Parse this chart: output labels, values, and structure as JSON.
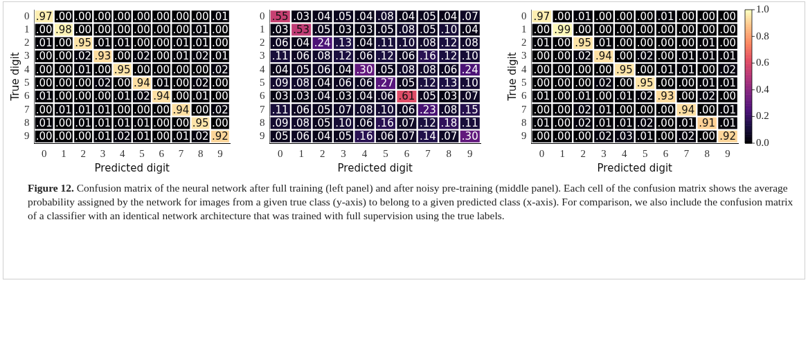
{
  "chart_data": [
    {
      "type": "heatmap",
      "xlabel": "Predicted digit",
      "ylabel": "True digit",
      "categories": [
        "0",
        "1",
        "2",
        "3",
        "4",
        "5",
        "6",
        "7",
        "8",
        "9"
      ],
      "y_categories": [
        "0",
        "1",
        "2",
        "3",
        "4",
        "5",
        "6",
        "7",
        "8",
        "9"
      ],
      "cells": [
        [
          0.97,
          0.0,
          0.0,
          0.0,
          0.0,
          0.0,
          0.0,
          0.0,
          0.0,
          0.01
        ],
        [
          0.0,
          0.98,
          0.0,
          0.0,
          0.0,
          0.0,
          0.0,
          0.0,
          0.01,
          0.0
        ],
        [
          0.01,
          0.0,
          0.95,
          0.01,
          0.01,
          0.0,
          0.0,
          0.01,
          0.01,
          0.0
        ],
        [
          0.0,
          0.0,
          0.02,
          0.93,
          0.0,
          0.02,
          0.0,
          0.01,
          0.02,
          0.01
        ],
        [
          0.0,
          0.0,
          0.01,
          0.0,
          0.95,
          0.0,
          0.0,
          0.0,
          0.0,
          0.02
        ],
        [
          0.0,
          0.0,
          0.0,
          0.02,
          0.0,
          0.94,
          0.01,
          0.0,
          0.02,
          0.0
        ],
        [
          0.01,
          0.0,
          0.0,
          0.0,
          0.01,
          0.02,
          0.94,
          0.0,
          0.01,
          0.0
        ],
        [
          0.0,
          0.01,
          0.01,
          0.01,
          0.0,
          0.0,
          0.0,
          0.94,
          0.0,
          0.02
        ],
        [
          0.01,
          0.0,
          0.01,
          0.01,
          0.01,
          0.01,
          0.0,
          0.0,
          0.95,
          0.0
        ],
        [
          0.0,
          0.0,
          0.0,
          0.01,
          0.02,
          0.01,
          0.0,
          0.01,
          0.02,
          0.92
        ]
      ],
      "cell_labels": [
        [
          ".97",
          ".00",
          ".00",
          ".00",
          ".00",
          ".00",
          ".00",
          ".00",
          ".00",
          ".01"
        ],
        [
          ".00",
          ".98",
          ".00",
          ".00",
          ".00",
          ".00",
          ".00",
          ".00",
          ".01",
          ".00"
        ],
        [
          ".01",
          ".00",
          ".95",
          ".01",
          ".01",
          ".00",
          ".00",
          ".01",
          ".01",
          ".00"
        ],
        [
          ".00",
          ".00",
          ".02",
          ".93",
          ".00",
          ".02",
          ".00",
          ".01",
          ".02",
          ".01"
        ],
        [
          ".00",
          ".00",
          ".01",
          ".00",
          ".95",
          ".00",
          ".00",
          ".00",
          ".00",
          ".02"
        ],
        [
          ".00",
          ".00",
          ".00",
          ".02",
          ".00",
          ".94",
          ".01",
          ".00",
          ".02",
          ".00"
        ],
        [
          ".01",
          ".00",
          ".00",
          ".00",
          ".01",
          ".02",
          ".94",
          ".00",
          ".01",
          ".00"
        ],
        [
          ".00",
          ".01",
          ".01",
          ".01",
          ".00",
          ".00",
          ".00",
          ".94",
          ".00",
          ".02"
        ],
        [
          ".01",
          ".00",
          ".01",
          ".01",
          ".01",
          ".01",
          ".00",
          ".00",
          ".95",
          ".00"
        ],
        [
          ".00",
          ".00",
          ".00",
          ".01",
          ".02",
          ".01",
          ".00",
          ".01",
          ".02",
          ".92"
        ]
      ],
      "annotations": [
        "Figure 12.",
        "Confusion matrix of the neural network after full training (left panel) and after noisy pre-training (middle panel). Each cell of the confusion matrix shows the average probability assigned by the network for images from a given true class (y-axis) to belong to a given predicted class (x-axis). For comparison, we also include the confusion matrix of a classifier with an identical network architecture that was trained with full supervision using the true labels."
      ]
    },
    {
      "type": "heatmap",
      "xlabel": "Predicted digit",
      "categories": [
        "0",
        "1",
        "2",
        "3",
        "4",
        "5",
        "6",
        "7",
        "8",
        "9"
      ],
      "y_categories": [
        "0",
        "1",
        "2",
        "3",
        "4",
        "5",
        "6",
        "7",
        "8",
        "9"
      ],
      "cells": [
        [
          0.55,
          0.03,
          0.04,
          0.05,
          0.04,
          0.08,
          0.04,
          0.05,
          0.04,
          0.07
        ],
        [
          0.03,
          0.53,
          0.05,
          0.03,
          0.03,
          0.05,
          0.08,
          0.05,
          0.1,
          0.04
        ],
        [
          0.06,
          0.04,
          0.24,
          0.13,
          0.04,
          0.11,
          0.1,
          0.08,
          0.12,
          0.08
        ],
        [
          0.11,
          0.06,
          0.08,
          0.12,
          0.06,
          0.12,
          0.06,
          0.16,
          0.12,
          0.1
        ],
        [
          0.04,
          0.05,
          0.06,
          0.04,
          0.3,
          0.05,
          0.08,
          0.08,
          0.06,
          0.24
        ],
        [
          0.09,
          0.08,
          0.04,
          0.06,
          0.06,
          0.27,
          0.05,
          0.12,
          0.13,
          0.1
        ],
        [
          0.03,
          0.03,
          0.04,
          0.03,
          0.04,
          0.06,
          0.61,
          0.05,
          0.03,
          0.07
        ],
        [
          0.11,
          0.06,
          0.05,
          0.07,
          0.08,
          0.1,
          0.06,
          0.23,
          0.08,
          0.15
        ],
        [
          0.09,
          0.08,
          0.05,
          0.1,
          0.06,
          0.16,
          0.07,
          0.12,
          0.18,
          0.11
        ],
        [
          0.05,
          0.06,
          0.04,
          0.05,
          0.16,
          0.06,
          0.07,
          0.14,
          0.07,
          0.3
        ]
      ],
      "cell_labels": [
        [
          ".55",
          ".03",
          ".04",
          ".05",
          ".04",
          ".08",
          ".04",
          ".05",
          ".04",
          ".07"
        ],
        [
          ".03",
          ".53",
          ".05",
          ".03",
          ".03",
          ".05",
          ".08",
          ".05",
          ".10",
          ".04"
        ],
        [
          ".06",
          ".04",
          ".24",
          ".13",
          ".04",
          ".11",
          ".10",
          ".08",
          ".12",
          ".08"
        ],
        [
          ".11",
          ".06",
          ".08",
          ".12",
          ".06",
          ".12",
          ".06",
          ".16",
          ".12",
          ".10"
        ],
        [
          ".04",
          ".05",
          ".06",
          ".04",
          ".30",
          ".05",
          ".08",
          ".08",
          ".06",
          ".24"
        ],
        [
          ".09",
          ".08",
          ".04",
          ".06",
          ".06",
          ".27",
          ".05",
          ".12",
          ".13",
          ".10"
        ],
        [
          ".03",
          ".03",
          ".04",
          ".03",
          ".04",
          ".06",
          ".61",
          ".05",
          ".03",
          ".07"
        ],
        [
          ".11",
          ".06",
          ".05",
          ".07",
          ".08",
          ".10",
          ".06",
          ".23",
          ".08",
          ".15"
        ],
        [
          ".09",
          ".08",
          ".05",
          ".10",
          ".06",
          ".16",
          ".07",
          ".12",
          ".18",
          ".11"
        ],
        [
          ".05",
          ".06",
          ".04",
          ".05",
          ".16",
          ".06",
          ".07",
          ".14",
          ".07",
          ".30"
        ]
      ]
    },
    {
      "type": "heatmap",
      "xlabel": "Predicted digit",
      "ylabel": "True digit",
      "categories": [
        "0",
        "1",
        "2",
        "3",
        "4",
        "5",
        "6",
        "7",
        "8",
        "9"
      ],
      "y_categories": [
        "0",
        "1",
        "2",
        "3",
        "4",
        "5",
        "6",
        "7",
        "8",
        "9"
      ],
      "clim": [
        0,
        1
      ],
      "cticks": [
        {
          "value": 0,
          "label": "0.0"
        },
        {
          "value": 0.2,
          "label": "0.2"
        },
        {
          "value": 0.4,
          "label": "0.4"
        },
        {
          "value": 0.6,
          "label": "0.6"
        },
        {
          "value": 0.8,
          "label": "0.8"
        },
        {
          "value": 1,
          "label": "1.0"
        }
      ],
      "cells": [
        [
          0.97,
          0.0,
          0.01,
          0.0,
          0.0,
          0.0,
          0.01,
          0.0,
          0.0,
          0.0
        ],
        [
          0.0,
          0.99,
          0.0,
          0.0,
          0.0,
          0.0,
          0.0,
          0.0,
          0.0,
          0.0
        ],
        [
          0.01,
          0.0,
          0.95,
          0.01,
          0.0,
          0.0,
          0.0,
          0.0,
          0.01,
          0.0
        ],
        [
          0.0,
          0.0,
          0.02,
          0.94,
          0.0,
          0.02,
          0.0,
          0.01,
          0.01,
          0.01
        ],
        [
          0.0,
          0.0,
          0.0,
          0.0,
          0.95,
          0.0,
          0.01,
          0.01,
          0.0,
          0.02
        ],
        [
          0.0,
          0.0,
          0.0,
          0.02,
          0.0,
          0.95,
          0.0,
          0.0,
          0.01,
          0.01
        ],
        [
          0.01,
          0.0,
          0.01,
          0.0,
          0.01,
          0.02,
          0.93,
          0.0,
          0.02,
          0.0
        ],
        [
          0.0,
          0.0,
          0.02,
          0.01,
          0.0,
          0.0,
          0.0,
          0.94,
          0.0,
          0.01
        ],
        [
          0.01,
          0.0,
          0.02,
          0.01,
          0.01,
          0.02,
          0.0,
          0.01,
          0.91,
          0.01
        ],
        [
          0.0,
          0.0,
          0.0,
          0.02,
          0.03,
          0.01,
          0.0,
          0.02,
          0.0,
          0.92
        ]
      ],
      "cell_labels": [
        [
          ".97",
          ".00",
          ".01",
          ".00",
          ".00",
          ".00",
          ".01",
          ".00",
          ".00",
          ".00"
        ],
        [
          ".00",
          ".99",
          ".00",
          ".00",
          ".00",
          ".00",
          ".00",
          ".00",
          ".00",
          ".00"
        ],
        [
          ".01",
          ".00",
          ".95",
          ".01",
          ".00",
          ".00",
          ".00",
          ".00",
          ".01",
          ".00"
        ],
        [
          ".00",
          ".00",
          ".02",
          ".94",
          ".00",
          ".02",
          ".00",
          ".01",
          ".01",
          ".01"
        ],
        [
          ".00",
          ".00",
          ".00",
          ".00",
          ".95",
          ".00",
          ".01",
          ".01",
          ".00",
          ".02"
        ],
        [
          ".00",
          ".00",
          ".00",
          ".02",
          ".00",
          ".95",
          ".00",
          ".00",
          ".01",
          ".01"
        ],
        [
          ".01",
          ".00",
          ".01",
          ".00",
          ".01",
          ".02",
          ".93",
          ".00",
          ".02",
          ".00"
        ],
        [
          ".00",
          ".00",
          ".02",
          ".01",
          ".00",
          ".00",
          ".00",
          ".94",
          ".00",
          ".01"
        ],
        [
          ".01",
          ".00",
          ".02",
          ".01",
          ".01",
          ".02",
          ".00",
          ".01",
          ".91",
          ".01"
        ],
        [
          ".00",
          ".00",
          ".00",
          ".02",
          ".03",
          ".01",
          ".00",
          ".02",
          ".00",
          ".92"
        ]
      ]
    }
  ]
}
